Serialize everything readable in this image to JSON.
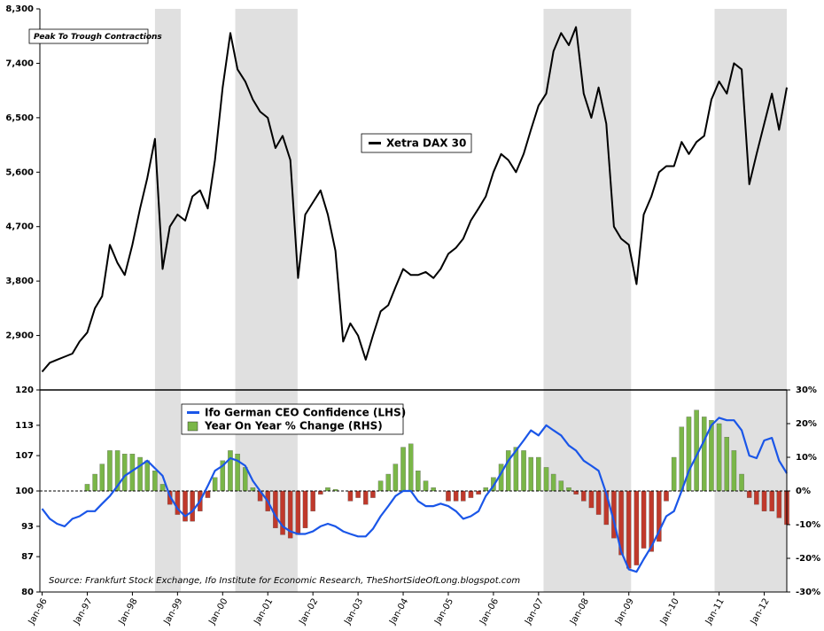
{
  "chart_data": [
    {
      "type": "line",
      "x": [
        1996,
        1996.17,
        1996.33,
        1996.5,
        1996.67,
        1996.83,
        1997,
        1997.17,
        1997.33,
        1997.5,
        1997.67,
        1997.83,
        1998,
        1998.17,
        1998.33,
        1998.5,
        1998.67,
        1998.83,
        1999,
        1999.17,
        1999.33,
        1999.5,
        1999.67,
        1999.83,
        2000,
        2000.17,
        2000.33,
        2000.5,
        2000.67,
        2000.83,
        2001,
        2001.17,
        2001.33,
        2001.5,
        2001.67,
        2001.83,
        2002,
        2002.17,
        2002.33,
        2002.5,
        2002.67,
        2002.83,
        2003,
        2003.17,
        2003.33,
        2003.5,
        2003.67,
        2003.83,
        2004,
        2004.17,
        2004.33,
        2004.5,
        2004.67,
        2004.83,
        2005,
        2005.17,
        2005.33,
        2005.5,
        2005.67,
        2005.83,
        2006,
        2006.17,
        2006.33,
        2006.5,
        2006.67,
        2006.83,
        2007,
        2007.17,
        2007.33,
        2007.5,
        2007.67,
        2007.83,
        2008,
        2008.17,
        2008.33,
        2008.5,
        2008.67,
        2008.83,
        2009,
        2009.17,
        2009.33,
        2009.5,
        2009.67,
        2009.83,
        2010,
        2010.17,
        2010.33,
        2010.5,
        2010.67,
        2010.83,
        2011,
        2011.17,
        2011.33,
        2011.5,
        2011.67,
        2011.83,
        2012,
        2012.17,
        2012.33,
        2012.5
      ],
      "series": [
        {
          "name": "Xetra DAX 30",
          "color": "#000000",
          "values": [
            2300,
            2450,
            2500,
            2550,
            2600,
            2800,
            2950,
            3350,
            3550,
            4400,
            4100,
            3900,
            4400,
            5000,
            5500,
            6150,
            4000,
            4700,
            4900,
            4800,
            5200,
            5300,
            5000,
            5800,
            7000,
            7900,
            7300,
            7100,
            6800,
            6600,
            6500,
            6000,
            6200,
            5800,
            3850,
            4900,
            5100,
            5300,
            4900,
            4300,
            2800,
            3100,
            2900,
            2500,
            2900,
            3300,
            3400,
            3700,
            4000,
            3900,
            3900,
            3950,
            3850,
            4000,
            4250,
            4350,
            4500,
            4800,
            5000,
            5200,
            5600,
            5900,
            5800,
            5600,
            5900,
            6300,
            6700,
            6900,
            7600,
            7900,
            7700,
            8000,
            6900,
            6500,
            7000,
            6400,
            4700,
            4500,
            4400,
            3750,
            4900,
            5200,
            5600,
            5700,
            5700,
            6100,
            5900,
            6100,
            6200,
            6800,
            7100,
            6900,
            7400,
            7300,
            5400,
            5900,
            6400,
            6900,
            6300,
            7000
          ]
        }
      ],
      "xlim": [
        1995.95,
        2012.5
      ],
      "ylim": [
        2000,
        8300
      ],
      "yticks": [
        {
          "value": 2900,
          "label": "2,900"
        },
        {
          "value": 3800,
          "label": "3,800"
        },
        {
          "value": 4700,
          "label": "4,700"
        },
        {
          "value": 5600,
          "label": "5,600"
        },
        {
          "value": 6500,
          "label": "6,500"
        },
        {
          "value": 7400,
          "label": "7,400"
        },
        {
          "value": 8300,
          "label": "8,300"
        }
      ],
      "annotation": "Peak To Trough Contractions",
      "shaded_periods": [
        [
          1998.5,
          1999.07
        ],
        [
          2000.28,
          2001.66
        ],
        [
          2007.11,
          2009.05
        ],
        [
          2010.9,
          2012.5
        ]
      ],
      "shade_color": "#e0e0e0"
    },
    {
      "type": "combo",
      "x": [
        1996,
        1996.17,
        1996.33,
        1996.5,
        1996.67,
        1996.83,
        1997,
        1997.17,
        1997.33,
        1997.5,
        1997.67,
        1997.83,
        1998,
        1998.17,
        1998.33,
        1998.5,
        1998.67,
        1998.83,
        1999,
        1999.17,
        1999.33,
        1999.5,
        1999.67,
        1999.83,
        2000,
        2000.17,
        2000.33,
        2000.5,
        2000.67,
        2000.83,
        2001,
        2001.17,
        2001.33,
        2001.5,
        2001.67,
        2001.83,
        2002,
        2002.17,
        2002.33,
        2002.5,
        2002.67,
        2002.83,
        2003,
        2003.17,
        2003.33,
        2003.5,
        2003.67,
        2003.83,
        2004,
        2004.17,
        2004.33,
        2004.5,
        2004.67,
        2004.83,
        2005,
        2005.17,
        2005.33,
        2005.5,
        2005.67,
        2005.83,
        2006,
        2006.17,
        2006.33,
        2006.5,
        2006.67,
        2006.83,
        2007,
        2007.17,
        2007.33,
        2007.5,
        2007.67,
        2007.83,
        2008,
        2008.17,
        2008.33,
        2008.5,
        2008.67,
        2008.83,
        2009,
        2009.17,
        2009.33,
        2009.5,
        2009.67,
        2009.83,
        2010,
        2010.17,
        2010.33,
        2010.5,
        2010.67,
        2010.83,
        2011,
        2011.17,
        2011.33,
        2011.5,
        2011.67,
        2011.83,
        2012,
        2012.17,
        2012.33,
        2012.5
      ],
      "series": [
        {
          "name": "Ifo German CEO Confidence (LHS)",
          "type": "line",
          "color": "#1a56e8",
          "values": [
            96.5,
            94.5,
            93.5,
            93,
            94.5,
            95,
            96,
            96,
            97.5,
            99,
            101,
            103,
            104,
            105,
            106,
            104.5,
            103,
            99,
            96.5,
            95,
            96,
            98,
            101,
            104,
            105,
            106.5,
            106,
            105,
            102,
            100,
            98,
            95,
            93,
            92,
            91.5,
            91.5,
            92,
            93,
            93.5,
            93,
            92,
            91.5,
            91,
            91,
            92.5,
            95,
            97,
            99,
            100,
            100,
            98,
            97,
            97,
            97.5,
            97,
            96,
            94.5,
            95,
            96,
            99,
            101,
            103.5,
            106,
            108,
            110,
            112,
            111,
            113,
            112,
            111,
            109,
            108,
            106,
            105,
            104,
            99.5,
            94,
            88,
            84.5,
            84,
            86.5,
            89,
            92,
            95,
            96,
            100,
            104,
            107,
            110,
            113,
            114.5,
            114,
            114,
            112,
            107,
            106.5,
            110,
            110.5,
            106,
            103.5
          ]
        },
        {
          "name": "Year On Year % Change (RHS)",
          "type": "bar",
          "axis": "y2",
          "color": "#7ab648",
          "negative_color": "#c0392b",
          "values": [
            null,
            null,
            null,
            null,
            null,
            null,
            2,
            5,
            8,
            12,
            12,
            11,
            11,
            10,
            9,
            6,
            2,
            -4,
            -7,
            -9,
            -9,
            -6,
            -2,
            4,
            9,
            12,
            11,
            7,
            1,
            -3,
            -6,
            -11,
            -13,
            -14,
            -13,
            -11,
            -6,
            -1,
            1,
            0.5,
            0,
            -3,
            -2,
            -4,
            -2,
            3,
            5,
            8,
            13,
            14,
            6,
            3,
            1,
            0,
            -3,
            -3,
            -3,
            -2,
            -1,
            1,
            4,
            8,
            12,
            13,
            12,
            10,
            10,
            7,
            5,
            3,
            1,
            -1,
            -3,
            -5,
            -7,
            -10,
            -14,
            -19,
            -23,
            -22,
            -17,
            -18,
            -15,
            -3,
            10,
            19,
            22,
            24,
            22,
            21,
            20,
            16,
            12,
            5,
            -2,
            -4,
            -6,
            -6,
            -8,
            -10
          ]
        }
      ],
      "xlim": [
        1995.95,
        2012.5
      ],
      "xticks": [
        {
          "value": 1996,
          "label": "Jan-96"
        },
        {
          "value": 1997,
          "label": "Jan-97"
        },
        {
          "value": 1998,
          "label": "Jan-98"
        },
        {
          "value": 1999,
          "label": "Jan-99"
        },
        {
          "value": 2000,
          "label": "Jan-00"
        },
        {
          "value": 2001,
          "label": "Jan-01"
        },
        {
          "value": 2002,
          "label": "Jan-02"
        },
        {
          "value": 2003,
          "label": "Jan-03"
        },
        {
          "value": 2004,
          "label": "Jan-04"
        },
        {
          "value": 2005,
          "label": "Jan-05"
        },
        {
          "value": 2006,
          "label": "Jan-06"
        },
        {
          "value": 2007,
          "label": "Jan-07"
        },
        {
          "value": 2008,
          "label": "Jan-08"
        },
        {
          "value": 2009,
          "label": "Jan-09"
        },
        {
          "value": 2010,
          "label": "Jan-10"
        },
        {
          "value": 2011,
          "label": "Jan-11"
        },
        {
          "value": 2012,
          "label": "Jan-12"
        }
      ],
      "ylim": [
        80,
        120
      ],
      "yticks": [
        80,
        87,
        93,
        100,
        107,
        113,
        120
      ],
      "y2lim": [
        -30,
        30
      ],
      "y2ticks": [
        {
          "value": -30,
          "label": "-30%"
        },
        {
          "value": -20,
          "label": "-20%"
        },
        {
          "value": -10,
          "label": "-10%"
        },
        {
          "value": 0,
          "label": "0%"
        },
        {
          "value": 10,
          "label": "10%"
        },
        {
          "value": 20,
          "label": "20%"
        },
        {
          "value": 30,
          "label": "30%"
        }
      ],
      "source": "Source: Frankfurt Stock Exchange, Ifo Institute for Economic Research, TheShortSideOfLong.blogspot.com"
    }
  ]
}
